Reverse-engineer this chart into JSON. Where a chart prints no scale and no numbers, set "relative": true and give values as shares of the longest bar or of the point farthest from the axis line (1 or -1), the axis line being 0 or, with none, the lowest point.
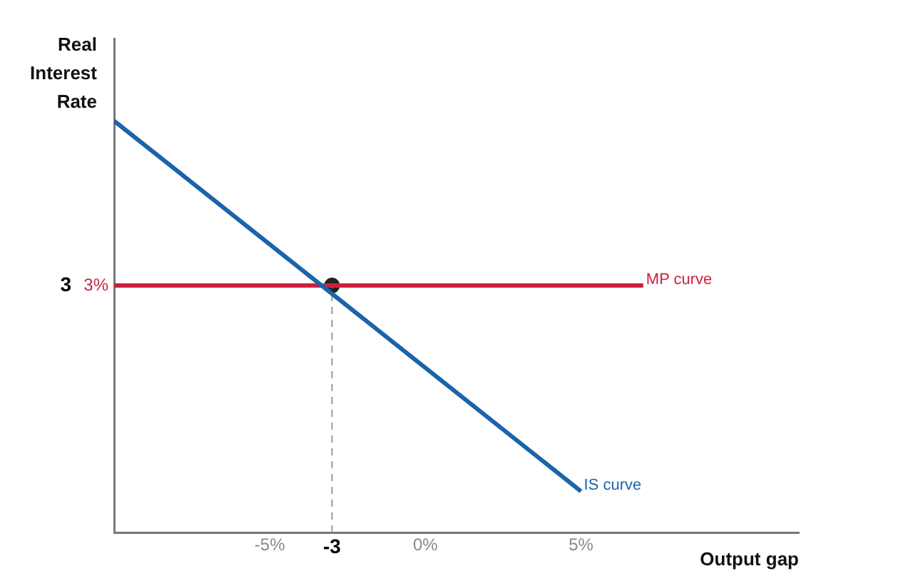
{
  "chart_data": {
    "type": "line",
    "ylabel": "Real Interest Rate",
    "xlabel": "Output gap",
    "xlim": [
      -10,
      12
    ],
    "xticks": [
      {
        "value": -5,
        "label": "-5%"
      },
      {
        "value": -3,
        "label": "-3"
      },
      {
        "value": 0,
        "label": "0%"
      },
      {
        "value": 5,
        "label": "5%"
      }
    ],
    "relative": true,
    "grid": false,
    "legend": false,
    "marker": "none",
    "series": [
      {
        "name": "IS curve",
        "color": "#1a64ab",
        "x": [
          -10,
          5
        ],
        "values": [
          1,
          0.1
        ]
      },
      {
        "name": "MP curve",
        "color": "#cc1f3f",
        "x": [
          -10,
          7
        ],
        "values": [
          0.6,
          0.6
        ]
      },
      {
        "type": "line",
        "color": "#999999",
        "line_style": "dashed",
        "x": [
          -3,
          -3
        ],
        "values": [
          0,
          0.6
        ]
      },
      {
        "type": "scatter",
        "color": "#222222",
        "marker": "circle",
        "x": [
          -3
        ],
        "values": [
          0.6
        ]
      }
    ],
    "annotations": [
      {
        "text": "3%",
        "x": -10,
        "y": 0.6
      },
      {
        "text": "3",
        "x": -10,
        "y": 0.6
      }
    ]
  }
}
